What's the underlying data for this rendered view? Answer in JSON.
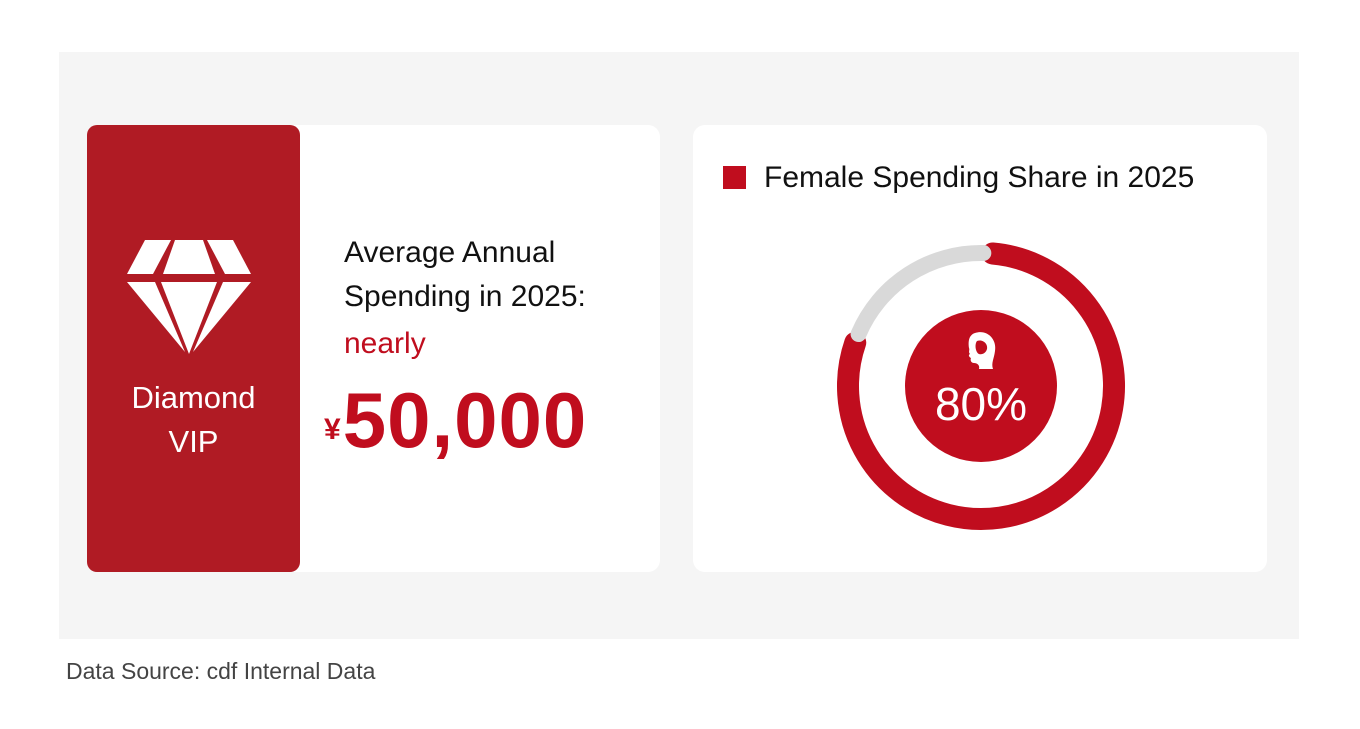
{
  "vip_card": {
    "tier_line1": "Diamond",
    "tier_line2": "VIP",
    "icon": "diamond-icon",
    "spend_title": "Average Annual Spending in 2025:",
    "spend_qualifier": "nearly",
    "spend_currency": "¥",
    "spend_amount": "50,000"
  },
  "chart_data": {
    "type": "pie",
    "variant": "donut",
    "legend": [
      "Female Spending Share in 2025"
    ],
    "legend_placement": "top-left",
    "series": [
      {
        "name": "Female Spending Share in 2025",
        "values": [
          80,
          20
        ],
        "colors": [
          "#c00d1e",
          "#d9d9d9"
        ]
      }
    ],
    "center_label": "80%",
    "center_icon": "female-head-icon"
  },
  "footer": {
    "source": "Data Source: cdf Internal Data"
  },
  "colors": {
    "accent": "#c00d1e",
    "vip_strip": "#b01b24",
    "remainder": "#d9d9d9",
    "panel_bg": "#f5f5f5"
  }
}
